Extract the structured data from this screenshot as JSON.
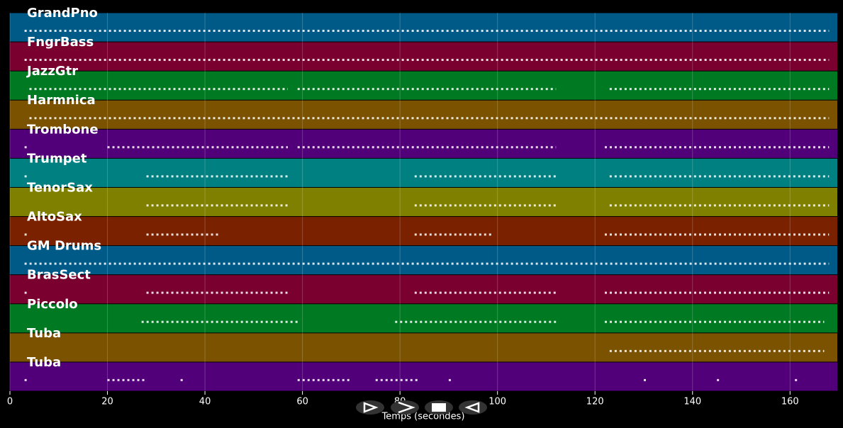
{
  "chart_data": {
    "type": "piano-roll",
    "xlabel": "Temps (secondes)",
    "xlim": [
      0,
      169.7
    ],
    "xticks": [
      0,
      20,
      40,
      60,
      80,
      100,
      120,
      140,
      160
    ],
    "grid": true,
    "tracks": [
      {
        "name": "GrandPno",
        "color": "#005a87",
        "spans": [
          [
            3,
            168
          ]
        ]
      },
      {
        "name": "FngrBass",
        "color": "#7a0030",
        "spans": [
          [
            3,
            168
          ]
        ]
      },
      {
        "name": "JazzGtr",
        "color": "#007a22",
        "spans": [
          [
            4,
            57
          ],
          [
            59,
            112
          ],
          [
            123,
            168
          ]
        ]
      },
      {
        "name": "Harmnica",
        "color": "#7a5200",
        "spans": [
          [
            4,
            168
          ]
        ]
      },
      {
        "name": "Trombone",
        "color": "#52007a",
        "spans": [
          [
            3,
            4
          ],
          [
            20,
            57
          ],
          [
            59,
            112
          ],
          [
            122,
            168
          ]
        ]
      },
      {
        "name": "Trumpet",
        "color": "#008080",
        "spans": [
          [
            3,
            4
          ],
          [
            28,
            57
          ],
          [
            83,
            112
          ],
          [
            123,
            168
          ]
        ]
      },
      {
        "name": "TenorSax",
        "color": "#808000",
        "spans": [
          [
            28,
            57
          ],
          [
            83,
            112
          ],
          [
            123,
            168
          ]
        ]
      },
      {
        "name": "AltoSax",
        "color": "#7a2200",
        "spans": [
          [
            3,
            4
          ],
          [
            28,
            43
          ],
          [
            83,
            99
          ],
          [
            122,
            168
          ]
        ]
      },
      {
        "name": "GM Drums",
        "color": "#005a87",
        "spans": [
          [
            3,
            168
          ]
        ]
      },
      {
        "name": "BrasSect",
        "color": "#7a0030",
        "spans": [
          [
            3,
            4
          ],
          [
            28,
            57
          ],
          [
            83,
            112
          ],
          [
            122,
            168
          ]
        ]
      },
      {
        "name": "Piccolo",
        "color": "#007a22",
        "spans": [
          [
            27,
            59
          ],
          [
            79,
            112
          ],
          [
            122,
            167
          ]
        ]
      },
      {
        "name": "Tuba",
        "color": "#7a5200",
        "spans": [
          [
            123,
            167
          ]
        ]
      },
      {
        "name": "Tuba",
        "color": "#52007a",
        "spans": [
          [
            3,
            4
          ],
          [
            20,
            28
          ],
          [
            35,
            36
          ],
          [
            59,
            70
          ],
          [
            75,
            84
          ],
          [
            90,
            91
          ],
          [
            130,
            131
          ],
          [
            145,
            146
          ],
          [
            161,
            162
          ]
        ]
      }
    ]
  }
}
